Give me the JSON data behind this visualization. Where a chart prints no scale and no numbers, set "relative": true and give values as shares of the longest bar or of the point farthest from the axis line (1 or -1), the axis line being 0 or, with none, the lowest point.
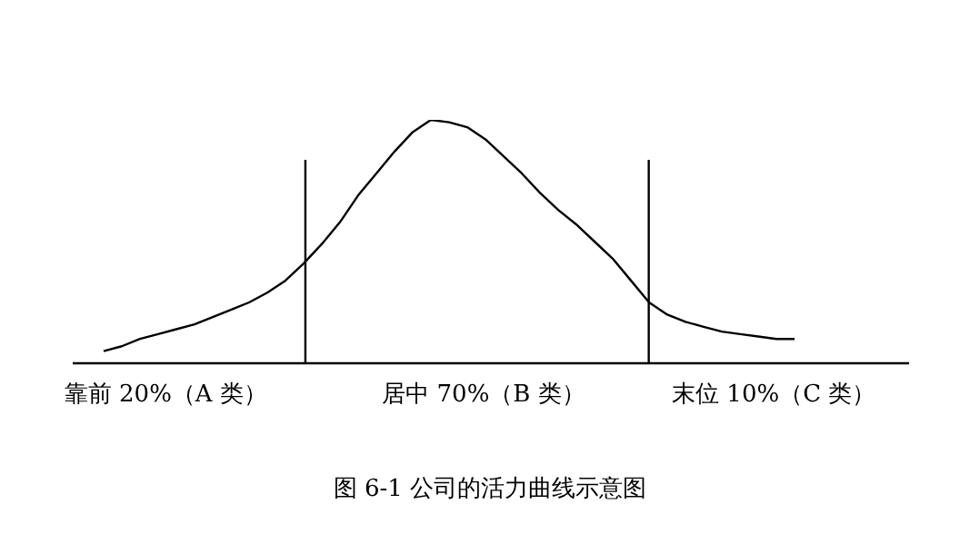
{
  "chart_data": {
    "type": "line",
    "relative": true,
    "title": "图 6-1 公司的活力曲线示意图",
    "categories": [
      null,
      null,
      null,
      null,
      null,
      null,
      null,
      null,
      null,
      null,
      null,
      null,
      null,
      null,
      null,
      null,
      null,
      null,
      null,
      null,
      null,
      null,
      null,
      null,
      null,
      null,
      null,
      null,
      null,
      null,
      null,
      null,
      null,
      null,
      null,
      null,
      null,
      null,
      null
    ],
    "series": [
      {
        "color": "#000000",
        "values": [
          0.05,
          0.07,
          0.1,
          0.12,
          0.14,
          0.16,
          0.19,
          0.22,
          0.25,
          0.29,
          0.34,
          0.41,
          0.49,
          0.58,
          0.69,
          0.78,
          0.87,
          0.95,
          1,
          0.99,
          0.97,
          0.92,
          0.85,
          0.78,
          0.7,
          0.63,
          0.57,
          0.5,
          0.43,
          0.34,
          0.25,
          0.2,
          0.17,
          0.15,
          0.13,
          0.12,
          0.11,
          0.1,
          0.1
        ]
      }
    ],
    "marker": "none",
    "line_style": "solid",
    "annotations": [
      "靠前 20%（A 类）",
      "居中 70%（B 类）",
      "末位 10%（C 类）"
    ]
  }
}
